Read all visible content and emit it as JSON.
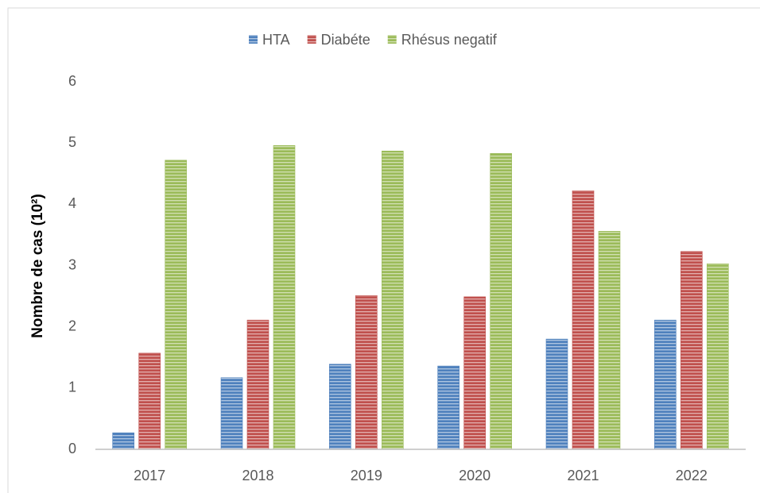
{
  "chart_data": {
    "type": "bar",
    "y_label": "Nombre de cas (10²)",
    "categories": [
      "2017",
      "2018",
      "2019",
      "2020",
      "2021",
      "2022"
    ],
    "series": [
      {
        "name": "HTA",
        "color": "#4f81bd",
        "values": [
          0.27,
          1.17,
          1.39,
          1.36,
          1.8,
          2.11
        ]
      },
      {
        "name": "Diabéte",
        "color": "#c0504d",
        "values": [
          1.57,
          2.11,
          2.51,
          2.49,
          4.22,
          3.23
        ]
      },
      {
        "name": "Rhésus negatif",
        "color": "#9bbb59",
        "values": [
          4.72,
          4.96,
          4.87,
          4.83,
          3.56,
          3.03
        ]
      }
    ],
    "ylim": [
      0,
      6
    ],
    "yticks": [
      0,
      1,
      2,
      3,
      4,
      5,
      6
    ],
    "grid": false,
    "legend": "top"
  }
}
